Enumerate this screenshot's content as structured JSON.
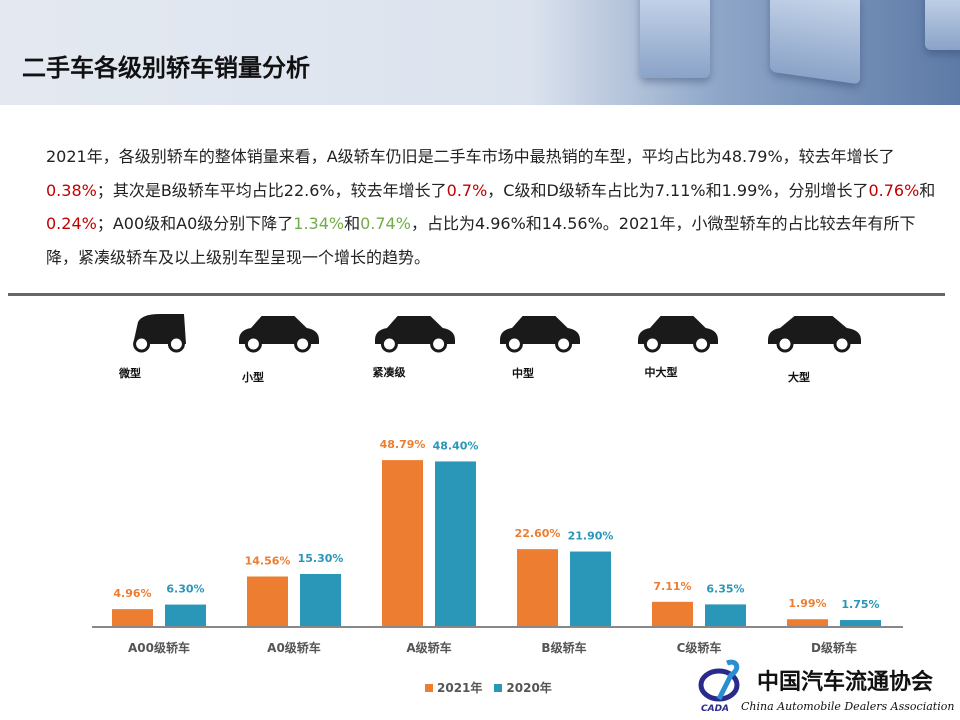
{
  "header": {
    "title": "二手车各级别轿车销量分析"
  },
  "paragraph": {
    "s1": "2021年，各级别轿车的整体销量来看，A级轿车仍旧是二手车市场中最热销的车型，平均占比为48.79%，较去年增长了",
    "r1": "0.38%",
    "s2": "；其次是B级轿车平均占比22.6%，较去年增长了",
    "r2": "0.7%",
    "s3": "，C级和D级轿车占比为7.11%和1.99%，分别增长了",
    "r3": "0.76%",
    "s4": "和",
    "r4": "0.24%",
    "s5": "；A00级和A0级分别下降了",
    "g1": "1.34%",
    "s6": "和",
    "g2": "0.74%",
    "s7": "，占比为4.96%和14.56%。2021年，小微型轿车的占比较去年有所下降，紧凑级轿车及以上级别车型呈现一个增长的趋势。"
  },
  "car_types": [
    "微型",
    "小型",
    "紧凑级",
    "中型",
    "中大型",
    "大型"
  ],
  "colors": {
    "series_2021": "#ed7d31",
    "series_2020": "#2a96b8",
    "increase": "#c00000",
    "decrease": "#70ad47"
  },
  "chart_data": {
    "type": "bar",
    "categories": [
      "A00级轿车",
      "A0级轿车",
      "A级轿车",
      "B级轿车",
      "C级轿车",
      "D级轿车"
    ],
    "series": [
      {
        "name": "2021年",
        "values": [
          4.96,
          14.56,
          48.79,
          22.6,
          7.11,
          1.99
        ],
        "labels": [
          "4.96%",
          "14.56%",
          "48.79%",
          "22.60%",
          "7.11%",
          "1.99%"
        ]
      },
      {
        "name": "2020年",
        "values": [
          6.3,
          15.3,
          48.4,
          21.9,
          6.35,
          1.75
        ],
        "labels": [
          "6.30%",
          "15.30%",
          "48.40%",
          "21.90%",
          "6.35%",
          "1.75%"
        ]
      }
    ],
    "legend": "bottom",
    "grid": false
  },
  "logo": {
    "cn": "中国汽车流通协会",
    "en": "China Automobile Dealers Association",
    "abbr": "CADA"
  }
}
